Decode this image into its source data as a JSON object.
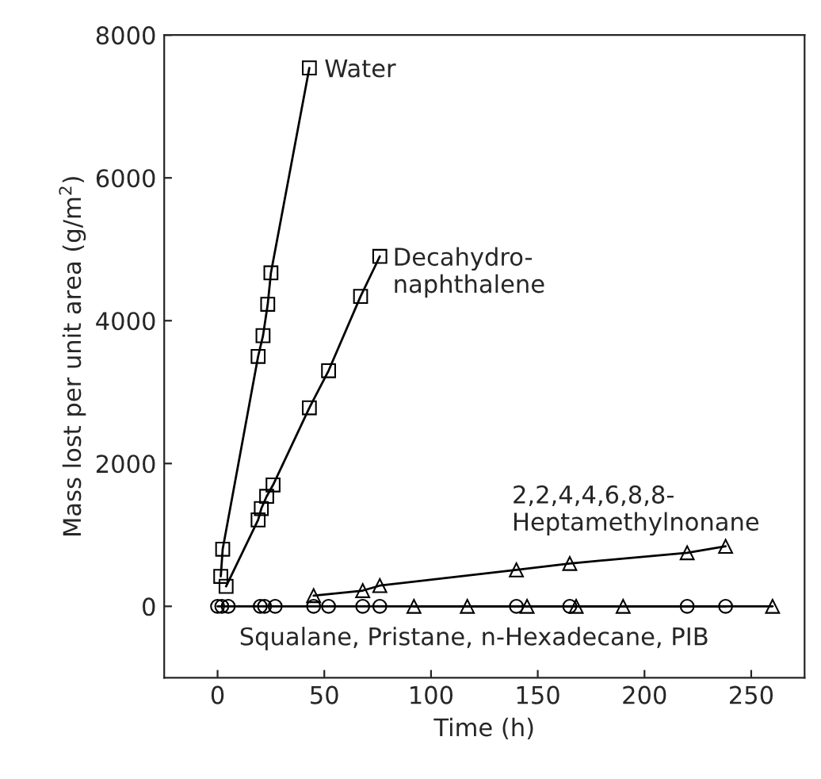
{
  "chart_data": {
    "type": "line",
    "xlabel": "Time (h)",
    "ylabel": "Mass lost per unit area (g/m$^{2}$)",
    "xlim": [
      -25,
      275
    ],
    "ylim": [
      -1000,
      8000
    ],
    "xticks": [
      0,
      50,
      100,
      150,
      200,
      250
    ],
    "yticks": [
      0,
      2000,
      4000,
      6000,
      8000
    ],
    "grid": false,
    "legend": false,
    "series": [
      {
        "color": "#000000",
        "marker": "square",
        "x": [
          1.5,
          2.4,
          19,
          21.3,
          23.5,
          25,
          43
        ],
        "values": [
          420,
          800,
          3500,
          3790,
          4230,
          4670,
          7540
        ]
      },
      {
        "color": "#000000",
        "marker": "square",
        "x": [
          4,
          19,
          20.5,
          23,
          26,
          43,
          52,
          67,
          76
        ],
        "values": [
          280,
          1210,
          1370,
          1540,
          1700,
          2780,
          3300,
          4340,
          4900
        ]
      },
      {
        "color": "#000000",
        "marker": "triangle",
        "x": [
          45,
          68,
          76,
          140,
          165,
          220,
          238
        ],
        "values": [
          150,
          220,
          290,
          510,
          600,
          750,
          840
        ]
      },
      {
        "color": "#000000",
        "marker": "circle",
        "x": [
          0,
          2,
          5,
          20,
          22,
          27,
          45,
          52,
          68,
          76,
          140,
          165,
          220,
          238
        ],
        "values": [
          0,
          0,
          0,
          0,
          0,
          0,
          0,
          0,
          0,
          0,
          0,
          0,
          0,
          0
        ]
      },
      {
        "color": "#000000",
        "marker": "triangle",
        "x": [
          92,
          117,
          145,
          168,
          190,
          260
        ],
        "values": [
          0,
          0,
          0,
          0,
          0,
          0
        ]
      }
    ],
    "annotations": [
      "Water",
      "Decahydro-\nnaphthalene",
      "2,2,4,4,6,8,8-\nHeptamethylnonane",
      "Squalane, Pristane, n-Hexadecane, PIB"
    ]
  }
}
